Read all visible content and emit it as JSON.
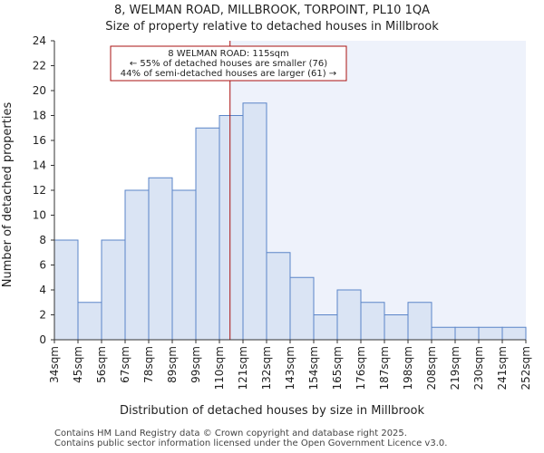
{
  "chart_data": {
    "type": "bar",
    "title_line1": "8, WELMAN ROAD, MILLBROOK, TORPOINT, PL10 1QA",
    "title_line2": "Size of property relative to detached houses in Millbrook",
    "xlabel": "Distribution of detached houses by size in Millbrook",
    "ylabel": "Number of detached properties",
    "ylim": [
      0,
      24
    ],
    "yticks": [
      0,
      2,
      4,
      6,
      8,
      10,
      12,
      14,
      16,
      18,
      20,
      22,
      24
    ],
    "bin_edges": [
      "34sqm",
      "45sqm",
      "56sqm",
      "67sqm",
      "78sqm",
      "89sqm",
      "99sqm",
      "110sqm",
      "121sqm",
      "132sqm",
      "143sqm",
      "154sqm",
      "165sqm",
      "176sqm",
      "187sqm",
      "198sqm",
      "208sqm",
      "219sqm",
      "230sqm",
      "241sqm",
      "252sqm"
    ],
    "values": [
      8,
      3,
      8,
      12,
      13,
      12,
      17,
      18,
      19,
      7,
      5,
      2,
      4,
      3,
      2,
      3,
      1,
      1,
      1,
      1
    ],
    "property_size_sqm": 115,
    "marker_bin_position": 7.45,
    "annotation": {
      "line1": "8 WELMAN ROAD: 115sqm",
      "line2": "← 55% of detached houses are smaller (76)",
      "line3": "44% of semi-detached houses are larger (61) →"
    },
    "colors": {
      "bar_fill": "#dae4f4",
      "bar_stroke": "#5b85c8",
      "shade": "#eef2fb",
      "marker": "#aa1111",
      "axis": "#333333"
    }
  },
  "footer": {
    "line1": "Contains HM Land Registry data © Crown copyright and database right 2025.",
    "line2": "Contains public sector information licensed under the Open Government Licence v3.0."
  }
}
